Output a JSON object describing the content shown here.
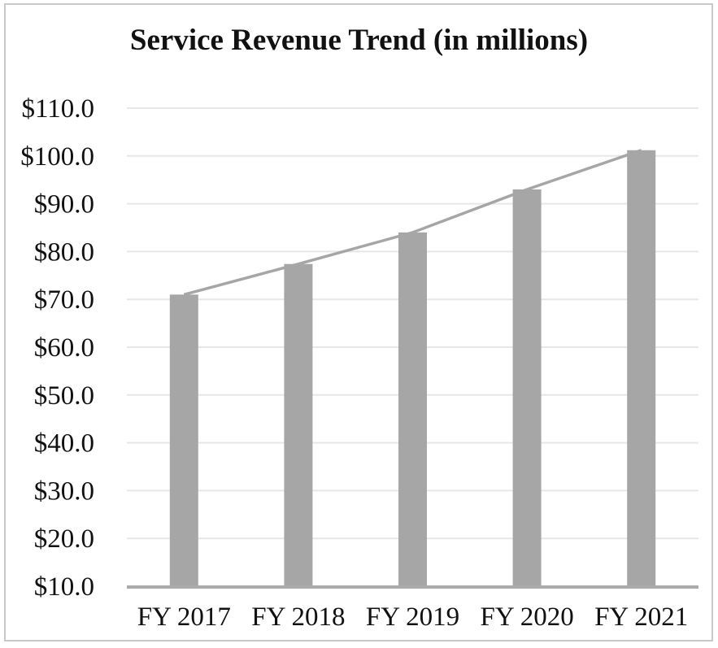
{
  "chart_data": {
    "type": "bar",
    "subtype": "bar-with-trendline",
    "title": "Service Revenue Trend (in millions)",
    "categories": [
      "FY 2017",
      "FY 2018",
      "FY 2019",
      "FY 2020",
      "FY 2021"
    ],
    "values": [
      71.0,
      77.4,
      84.0,
      93.0,
      101.2
    ],
    "series": [
      {
        "name": "service-revenue-bars",
        "type": "bar",
        "values": [
          71.0,
          77.4,
          84.0,
          93.0,
          101.2
        ]
      },
      {
        "name": "service-revenue-trend-line",
        "type": "line",
        "values": [
          71.0,
          77.4,
          84.0,
          93.0,
          101.2
        ]
      }
    ],
    "xlabel": "",
    "ylabel": "",
    "ylim": [
      10,
      110
    ],
    "ytick_step": 10,
    "ytick_labels": [
      "$10.0",
      "$20.0",
      "$30.0",
      "$40.0",
      "$50.0",
      "$60.0",
      "$70.0",
      "$80.0",
      "$90.0",
      "$100.0",
      "$110.0"
    ],
    "grid": "horizontal",
    "legend": "none",
    "colors": {
      "bar": "#a6a6a6",
      "line": "#a6a6a6",
      "gridline": "#e7e7e7",
      "axis": "#ababab",
      "text": "#111111",
      "border": "#c9c9c9",
      "background": "#ffffff"
    }
  }
}
